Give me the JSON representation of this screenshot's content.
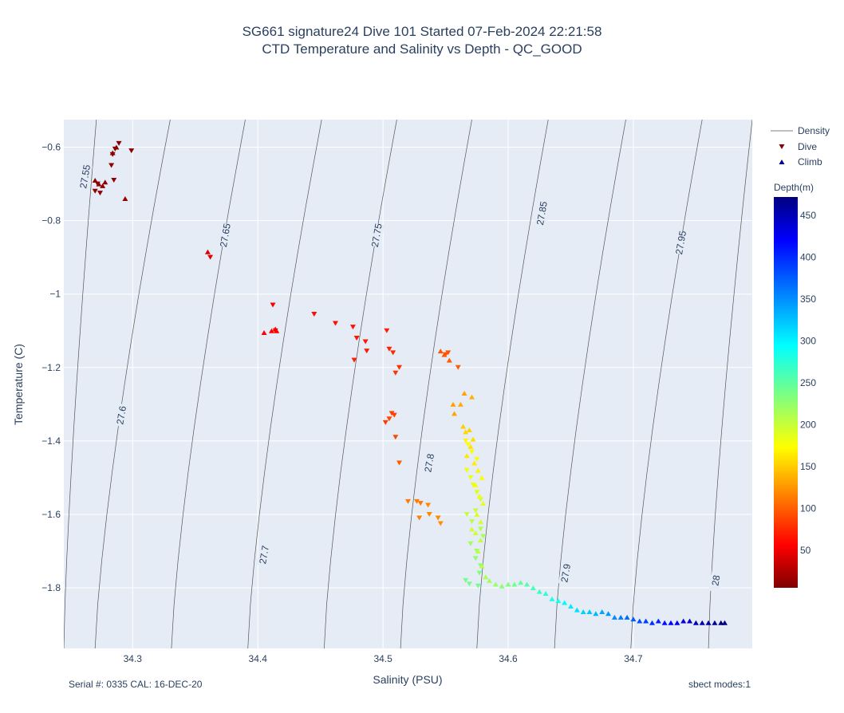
{
  "title_line1": "SG661 signature24 Dive 101 Started 07-Feb-2024 22:21:58",
  "title_line2": "CTD Temperature and Salinity vs Depth - QC_GOOD",
  "footer": {
    "serial": "Serial #: 0335  CAL: 16-DEC-20",
    "modes": "sbect modes:1"
  },
  "colors": {
    "plot_bg": "#e5ecf6",
    "grid": "#ffffff",
    "isopycnal": "#555555"
  },
  "chart_data": {
    "type": "scatter",
    "xlabel": "Salinity (PSU)",
    "ylabel": "Temperature (C)",
    "xlim": [
      34.245,
      34.795
    ],
    "ylim": [
      -1.965,
      -0.525
    ],
    "xticks": [
      34.3,
      34.4,
      34.5,
      34.6,
      34.7
    ],
    "xtick_labels": [
      "34.3",
      "34.4",
      "34.5",
      "34.6",
      "34.7"
    ],
    "yticks": [
      -0.6,
      -0.8,
      -1.0,
      -1.2,
      -1.4,
      -1.6,
      -1.8
    ],
    "ytick_labels": [
      "−0.6",
      "−0.8",
      "−1",
      "−1.2",
      "−1.4",
      "−1.6",
      "−1.8"
    ],
    "grid": true,
    "legend": {
      "placement": "right",
      "entries": [
        {
          "name": "Density",
          "symbol": "line"
        },
        {
          "name": "Dive",
          "symbol": "triangle-down"
        },
        {
          "name": "Climb",
          "symbol": "triangle-up"
        }
      ]
    },
    "colorbar": {
      "title": "Depth(m)",
      "colorscale": "jet-reversed",
      "range": [
        5,
        472
      ],
      "ticks": [
        50,
        100,
        150,
        200,
        250,
        300,
        350,
        400,
        450
      ]
    },
    "density_contours": [
      {
        "label": "27.55",
        "s_top": 34.271,
        "s_bot": 34.245,
        "label_s": 34.262,
        "label_t": -0.68
      },
      {
        "label": "27.6",
        "s_top": 34.33,
        "s_bot": 34.27,
        "label_s": 34.291,
        "label_t": -1.33
      },
      {
        "label": "27.65",
        "s_top": 34.39,
        "s_bot": 34.331,
        "label_s": 34.374,
        "label_t": -0.84
      },
      {
        "label": "27.7",
        "s_top": 34.451,
        "s_bot": 34.392,
        "label_s": 34.405,
        "label_t": -1.71
      },
      {
        "label": "27.75",
        "s_top": 34.511,
        "s_bot": 34.453,
        "label_s": 34.495,
        "label_t": -0.84
      },
      {
        "label": "27.8",
        "s_top": 34.571,
        "s_bot": 34.514,
        "label_s": 34.537,
        "label_t": -1.46
      },
      {
        "label": "27.85",
        "s_top": 34.632,
        "s_bot": 34.575,
        "label_s": 34.627,
        "label_t": -0.78
      },
      {
        "label": "27.9",
        "s_top": 34.694,
        "s_bot": 34.637,
        "label_s": 34.646,
        "label_t": -1.76
      },
      {
        "label": "27.95",
        "s_top": 34.755,
        "s_bot": 34.698,
        "label_s": 34.738,
        "label_t": -0.86
      },
      {
        "label": "28",
        "s_top": 34.795,
        "s_bot": 34.76,
        "label_s": 34.766,
        "label_t": -1.78
      }
    ],
    "series": [
      {
        "name": "Dive",
        "marker": "triangle-down",
        "x": [
          34.286,
          34.289,
          34.284,
          34.299,
          34.283,
          34.285,
          34.272,
          34.27,
          34.274,
          34.362,
          34.412,
          34.414,
          34.445,
          34.462,
          34.476,
          34.479,
          34.486,
          34.487,
          34.477,
          34.503,
          34.505,
          34.508,
          34.513,
          34.51,
          34.505,
          34.513,
          34.53,
          34.537,
          34.544,
          34.55,
          34.552,
          34.56,
          34.502,
          34.507,
          34.509,
          34.51,
          34.52,
          34.527,
          34.529,
          34.536,
          34.546,
          34.566,
          34.568,
          34.571,
          34.575,
          34.567,
          34.57,
          34.572,
          34.575,
          34.578,
          34.574,
          34.567,
          34.571,
          34.578,
          34.58,
          34.57,
          34.575,
          34.574,
          34.578,
          34.577,
          34.566,
          34.569,
          34.576
        ],
        "y": [
          -0.605,
          -0.59,
          -0.62,
          -0.61,
          -0.65,
          -0.69,
          -0.7,
          -0.72,
          -0.725,
          -0.9,
          -1.03,
          -1.1,
          -1.055,
          -1.08,
          -1.09,
          -1.12,
          -1.13,
          -1.155,
          -1.18,
          -1.1,
          -1.15,
          -1.16,
          -1.2,
          -1.215,
          -1.34,
          -1.46,
          -1.57,
          -1.6,
          -1.61,
          -1.165,
          -1.16,
          -1.2,
          -1.35,
          -1.325,
          -1.33,
          -1.39,
          -1.565,
          -1.565,
          -1.61,
          -1.575,
          -1.625,
          -1.4,
          -1.41,
          -1.43,
          -1.45,
          -1.48,
          -1.5,
          -1.52,
          -1.54,
          -1.56,
          -1.59,
          -1.6,
          -1.62,
          -1.64,
          -1.66,
          -1.68,
          -1.7,
          -1.72,
          -1.74,
          -1.76,
          -1.78,
          -1.79,
          -1.795
        ]
      },
      {
        "name": "Climb",
        "marker": "triangle-up",
        "x": [
          34.27,
          34.273,
          34.276,
          34.278,
          34.284,
          34.287,
          34.294,
          34.36,
          34.411,
          34.405,
          34.415,
          34.414,
          34.546,
          34.549,
          34.553,
          34.556,
          34.557,
          34.562,
          34.565,
          34.571,
          34.564,
          34.569,
          34.566,
          34.572,
          34.57,
          34.567,
          34.573,
          34.576,
          34.579,
          34.574,
          34.577,
          34.58,
          34.575,
          34.578,
          34.571,
          34.574,
          34.578,
          34.576,
          34.579,
          34.582,
          34.585,
          34.59,
          34.595,
          34.6,
          34.605,
          34.61,
          34.615,
          34.62,
          34.625,
          34.63,
          34.635,
          34.64,
          34.645,
          34.65,
          34.655,
          34.66,
          34.665,
          34.67,
          34.675,
          34.68,
          34.685,
          34.69,
          34.695,
          34.7,
          34.705,
          34.71,
          34.715,
          34.72,
          34.725,
          34.73,
          34.735,
          34.74,
          34.745,
          34.75,
          34.755,
          34.76,
          34.765,
          34.77,
          34.773
        ],
        "y": [
          -0.69,
          -0.7,
          -0.705,
          -0.695,
          -0.615,
          -0.6,
          -0.74,
          -0.885,
          -1.1,
          -1.105,
          -1.1,
          -1.095,
          -1.155,
          -1.165,
          -1.18,
          -1.3,
          -1.325,
          -1.3,
          -1.27,
          -1.28,
          -1.36,
          -1.37,
          -1.375,
          -1.395,
          -1.415,
          -1.44,
          -1.46,
          -1.48,
          -1.5,
          -1.52,
          -1.55,
          -1.57,
          -1.6,
          -1.62,
          -1.64,
          -1.65,
          -1.67,
          -1.7,
          -1.74,
          -1.77,
          -1.78,
          -1.79,
          -1.795,
          -1.79,
          -1.79,
          -1.785,
          -1.79,
          -1.8,
          -1.81,
          -1.815,
          -1.83,
          -1.835,
          -1.84,
          -1.85,
          -1.86,
          -1.865,
          -1.865,
          -1.87,
          -1.865,
          -1.87,
          -1.88,
          -1.88,
          -1.88,
          -1.885,
          -1.89,
          -1.89,
          -1.895,
          -1.89,
          -1.895,
          -1.895,
          -1.895,
          -1.89,
          -1.89,
          -1.895,
          -1.895,
          -1.895,
          -1.895,
          -1.895,
          -1.895
        ],
        "depth": [
          12,
          12,
          12,
          12,
          8,
          8,
          14,
          42,
          56,
          56,
          55,
          55,
          95,
          96,
          98,
          130,
          132,
          135,
          130,
          138,
          150,
          152,
          155,
          158,
          160,
          162,
          165,
          168,
          172,
          175,
          180,
          185,
          190,
          193,
          196,
          198,
          202,
          205,
          208,
          212,
          216,
          222,
          228,
          235,
          242,
          248,
          255,
          262,
          268,
          275,
          282,
          290,
          297,
          304,
          310,
          316,
          322,
          330,
          338,
          345,
          352,
          360,
          368,
          375,
          382,
          390,
          398,
          405,
          412,
          420,
          428,
          436,
          442,
          448,
          454,
          460,
          465,
          470,
          472
        ]
      }
    ],
    "dive_depth": [
      8,
      7,
      9,
      8,
      10,
      12,
      12,
      13,
      14,
      44,
      54,
      56,
      60,
      62,
      65,
      66,
      67,
      68,
      70,
      70,
      72,
      74,
      78,
      80,
      88,
      98,
      110,
      118,
      120,
      92,
      94,
      100,
      84,
      86,
      86,
      90,
      112,
      114,
      116,
      118,
      122,
      170,
      172,
      175,
      178,
      180,
      183,
      186,
      190,
      194,
      198,
      202,
      206,
      210,
      214,
      218,
      222,
      226,
      230,
      234,
      238,
      240,
      242
    ]
  }
}
